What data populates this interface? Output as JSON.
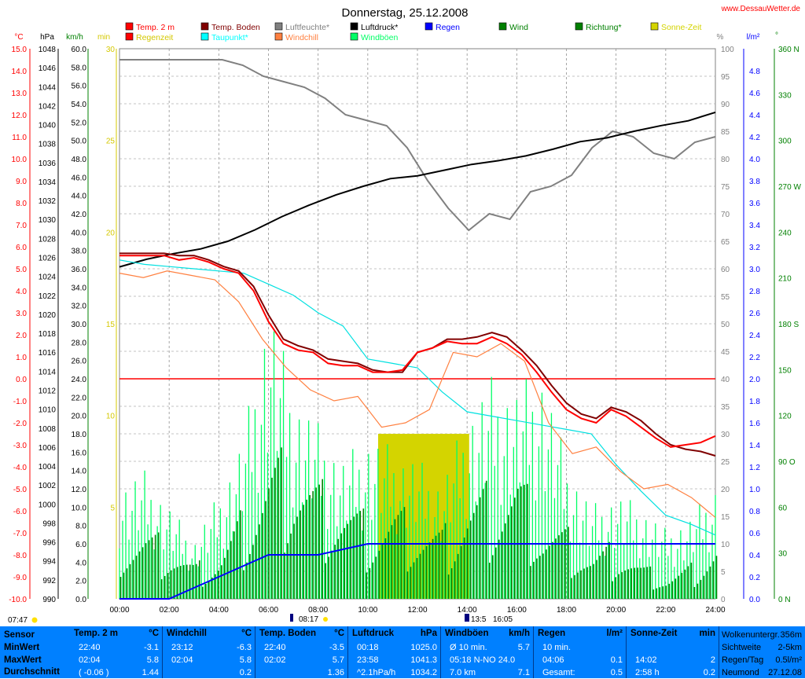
{
  "title": "Donnerstag, 25.12.2008",
  "site": "www.DessauWetter.de",
  "legend": [
    {
      "label": "Temp. 2 m",
      "color": "#ff0000"
    },
    {
      "label": "Regenzeit",
      "color": "#ff0000",
      "text_color": "#d4c800"
    },
    {
      "label": "Temp. Boden",
      "color": "#800000"
    },
    {
      "label": "Taupunkt*",
      "color": "#00ffff"
    },
    {
      "label": "Luftfeuchte*",
      "color": "#808080"
    },
    {
      "label": "Windchill",
      "color": "#ff8040"
    },
    {
      "label": "Luftdruck*",
      "color": "#000000"
    },
    {
      "label": "Windböen",
      "color": "#00ff66"
    },
    {
      "label": "Regen",
      "color": "#0000ff"
    },
    {
      "label": "Wind",
      "color": "#008000"
    },
    {
      "label": "Richtung*",
      "color": "#008000"
    },
    {
      "label": "Sonne-Zeit",
      "color": "#d4d400"
    }
  ],
  "axis_units": {
    "temp": "°C",
    "pressure": "hPa",
    "wind": "km/h",
    "sun": "min",
    "humidity": "%",
    "rain": "l/m²",
    "direction": "°"
  },
  "axes": {
    "temp": [
      15.0,
      14.0,
      13.0,
      12.0,
      11.0,
      10.0,
      9.0,
      8.0,
      7.0,
      6.0,
      5.0,
      4.0,
      3.0,
      2.0,
      1.0,
      0.0,
      -1.0,
      -2.0,
      -3.0,
      -4.0,
      -5.0,
      -6.0,
      -7.0,
      -8.0,
      -9.0,
      -10.0
    ],
    "pressure": [
      1048,
      1046,
      1044,
      1042,
      1040,
      1038,
      1036,
      1034,
      1032,
      1030,
      1028,
      1026,
      1024,
      1022,
      1020,
      1018,
      1016,
      1014,
      1012,
      1010,
      1008,
      1006,
      1004,
      1002,
      1000,
      998,
      996,
      994,
      992,
      990
    ],
    "wind": [
      60.0,
      58.0,
      56.0,
      54.0,
      52.0,
      50.0,
      48.0,
      46.0,
      44.0,
      42.0,
      40.0,
      38.0,
      36.0,
      34.0,
      32.0,
      30.0,
      28.0,
      26.0,
      24.0,
      22.0,
      20.0,
      18.0,
      16.0,
      14.0,
      12.0,
      10.0,
      8.0,
      6.0,
      4.0,
      2.0,
      0.0
    ],
    "sun": [
      30,
      25,
      20,
      15,
      10,
      5
    ],
    "humidity": [
      100,
      95,
      90,
      85,
      80,
      75,
      70,
      65,
      60,
      55,
      50,
      45,
      40,
      35,
      30,
      25,
      20,
      15,
      10,
      5,
      0
    ],
    "rain": [
      4.8,
      4.6,
      4.4,
      4.2,
      4.0,
      3.8,
      3.6,
      3.4,
      3.2,
      3.0,
      2.8,
      2.6,
      2.4,
      2.2,
      2.0,
      1.8,
      1.6,
      1.4,
      1.2,
      1.0,
      0.8,
      0.6,
      0.4,
      0.2,
      0.0
    ],
    "direction": [
      "360 N",
      "330",
      "300",
      "270 W",
      "240",
      "210",
      "180 S",
      "150",
      "120",
      "90 O",
      "60",
      "30",
      "0 N"
    ],
    "time": [
      "00:00",
      "02:00",
      "04:00",
      "06:00",
      "08:00",
      "10:00",
      "12:00",
      "14:00",
      "16:00",
      "18:00",
      "20:00",
      "22:00",
      "24:00"
    ]
  },
  "markers": {
    "moonset": "07:47",
    "sunrise": "08:17",
    "sunset": "16:05",
    "extra": "13:5"
  },
  "chart_data": {
    "type": "line",
    "xlabel": "",
    "x_hours": [
      0,
      0.5,
      1,
      1.5,
      2,
      2.5,
      3,
      3.5,
      4,
      4.5,
      5,
      5.5,
      6,
      6.5,
      7,
      7.5,
      8,
      8.5,
      9,
      9.5,
      10,
      10.5,
      11,
      11.5,
      12,
      12.5,
      13,
      13.5,
      14,
      14.5,
      15,
      15.5,
      16,
      16.5,
      17,
      17.5,
      18,
      18.5,
      19,
      19.5,
      20,
      20.5,
      21,
      21.5,
      22,
      22.5,
      23,
      23.5,
      24
    ],
    "series": [
      {
        "name": "Temp. 2 m",
        "unit": "°C",
        "color": "#ff0000",
        "values": [
          5.6,
          5.6,
          5.6,
          5.6,
          5.4,
          5.5,
          5.3,
          5.0,
          4.8,
          4.0,
          2.6,
          1.6,
          1.3,
          1.2,
          0.7,
          0.6,
          0.6,
          0.3,
          0.3,
          0.4,
          1.2,
          1.4,
          1.7,
          1.6,
          1.6,
          1.9,
          1.6,
          1.1,
          0.3,
          -0.6,
          -1.4,
          -1.8,
          -2.0,
          -1.4,
          -1.7,
          -2.2,
          -2.7,
          -3.1,
          -3.0,
          -2.9,
          -2.6
        ]
      },
      {
        "name": "Temp. Boden",
        "unit": "°C",
        "color": "#800000",
        "values": [
          5.7,
          5.7,
          5.7,
          5.7,
          5.6,
          5.6,
          5.4,
          5.1,
          4.9,
          4.2,
          2.9,
          1.8,
          1.5,
          1.3,
          0.9,
          0.8,
          0.7,
          0.4,
          0.3,
          0.3,
          1.2,
          1.4,
          1.8,
          1.8,
          1.9,
          2.1,
          1.9,
          1.3,
          0.6,
          -0.3,
          -1.1,
          -1.6,
          -1.8,
          -1.3,
          -1.5,
          -1.9,
          -2.5,
          -3.0,
          -3.2,
          -3.3,
          -3.5
        ]
      },
      {
        "name": "Taupunkt*",
        "unit": "°C",
        "color": "#00ffff",
        "values": [
          5.4,
          5.2,
          5.1,
          5.0,
          4.9,
          4.8,
          4.3,
          3.8,
          3.0,
          2.4,
          0.9,
          0.7,
          0.5,
          -0.6,
          -1.5,
          -1.7,
          -1.9,
          -2.1,
          -2.3,
          -2.5,
          -3.9,
          -5.1,
          -6.2,
          -6.6,
          -7.1
        ]
      },
      {
        "name": "Windchill",
        "unit": "°C",
        "color": "#ff8040",
        "values": [
          4.8,
          4.6,
          4.9,
          4.7,
          4.5,
          3.5,
          1.8,
          0.5,
          -0.5,
          -1.0,
          -0.8,
          -2.2,
          -2.0,
          -1.4,
          1.2,
          1.0,
          1.6,
          0.8,
          -2.0,
          -3.4,
          -3.1,
          -4.2,
          -5.0,
          -4.8,
          -5.4,
          -6.3
        ]
      },
      {
        "name": "Luftfeuchte*",
        "unit": "%",
        "color": "#808080",
        "values": [
          98,
          98,
          98,
          98,
          98,
          98,
          97,
          95,
          94,
          93,
          91,
          88,
          87,
          86,
          82,
          76,
          71,
          67,
          70,
          69,
          74,
          75,
          77,
          82,
          85,
          84,
          81,
          80,
          83,
          84
        ]
      },
      {
        "name": "Luftdruck*",
        "unit": "hPa",
        "color": "#000000",
        "values": [
          1025.0,
          1025.8,
          1026.4,
          1026.9,
          1027.7,
          1028.9,
          1030.3,
          1031.5,
          1032.6,
          1033.5,
          1034.3,
          1034.6,
          1035.2,
          1035.8,
          1036.2,
          1036.7,
          1037.4,
          1038.2,
          1038.6,
          1039.3,
          1039.9,
          1040.4,
          1041.3
        ]
      },
      {
        "name": "Regen",
        "unit": "l/m²",
        "color": "#0000ff",
        "values": [
          0.0,
          0.0,
          0.2,
          0.4,
          0.4,
          0.5,
          0.5,
          0.5,
          0.5,
          0.5,
          0.5,
          0.5,
          0.5
        ]
      },
      {
        "name": "Wind",
        "unit": "km/h",
        "color": "#008000",
        "values": [
          6,
          6,
          5,
          3,
          4,
          8,
          12,
          13,
          10,
          9,
          7,
          8,
          7,
          6,
          9,
          10,
          11,
          7,
          6,
          4,
          5,
          3,
          2,
          3,
          5
        ]
      },
      {
        "name": "Windböen",
        "unit": "km/h",
        "color": "#00ff66",
        "values": [
          10,
          11,
          8,
          5,
          9,
          14,
          26,
          18,
          15,
          12,
          14,
          13,
          12,
          10,
          16,
          19,
          18,
          20,
          12,
          8,
          9,
          8,
          6,
          7,
          10
        ]
      }
    ],
    "sun_blocks": [
      {
        "from": "10:25",
        "to": "14:05",
        "minutes": 9
      }
    ]
  },
  "stats": {
    "row_labels": [
      "Sensor",
      "MinWert",
      "MaxWert",
      "Durchschnitt"
    ],
    "groups": [
      {
        "title": "Temp. 2 m",
        "unit": "°C",
        "rows": [
          [
            "22:40",
            "-3.1"
          ],
          [
            "02:04",
            "5.8"
          ],
          [
            "( -0.06 )",
            "1.44"
          ]
        ]
      },
      {
        "title": "Windchill",
        "unit": "°C",
        "rows": [
          [
            "23:12",
            "-6.3"
          ],
          [
            "02:04",
            "5.8"
          ],
          [
            "",
            "0.2"
          ]
        ]
      },
      {
        "title": "Temp. Boden",
        "unit": "°C",
        "rows": [
          [
            "22:40",
            "-3.5"
          ],
          [
            "02:02",
            "5.7"
          ],
          [
            "",
            "1.36"
          ]
        ]
      },
      {
        "title": "Luftdruck",
        "unit": "hPa",
        "rows": [
          [
            "00:18",
            "1025.0"
          ],
          [
            "23:58",
            "1041.3"
          ],
          [
            "^2.1hPa/h",
            "1034.2"
          ]
        ]
      },
      {
        "title": "Windböen",
        "unit": "km/h",
        "rows": [
          [
            "Ø 10 min.",
            "5.7"
          ],
          [
            "05:18   N-NO 24.0",
            ""
          ],
          [
            "7.0 km",
            "7.1"
          ]
        ]
      },
      {
        "title": "Regen",
        "unit": "l/m²",
        "rows": [
          [
            "10 min.",
            ""
          ],
          [
            "04:06",
            "0.1"
          ],
          [
            "Gesamt:",
            "0.5"
          ]
        ]
      },
      {
        "title": "Sonne-Zeit",
        "unit": "min",
        "rows": [
          [
            "",
            ""
          ],
          [
            "14:02",
            "2"
          ],
          [
            "2:58 h",
            "0.2"
          ]
        ]
      },
      {
        "title": "",
        "unit": "",
        "rows": [
          [
            "Wolkenuntergr.",
            "356m"
          ],
          [
            "Sichtweite",
            "2-5km"
          ],
          [
            "Regen/Tag",
            "0.5l/m²"
          ],
          [
            "Neumond",
            "27.12.08"
          ]
        ]
      }
    ]
  }
}
